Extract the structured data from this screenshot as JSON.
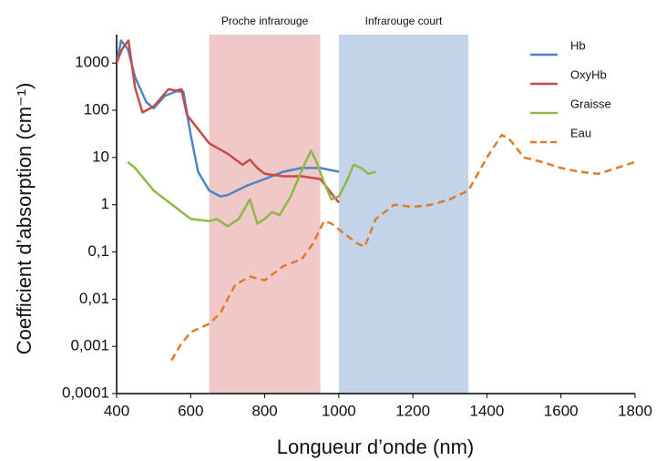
{
  "chart_data": {
    "type": "line",
    "xlabel": "Longueur d’onde (nm)",
    "ylabel": "Coefficient d’absorption (cm⁻¹)",
    "yscale": "log",
    "xlim": [
      400,
      1800
    ],
    "ylim": [
      0.0001,
      4000
    ],
    "xticks": [
      400,
      600,
      800,
      1000,
      1200,
      1400,
      1600,
      1800
    ],
    "yticks": [
      {
        "value": 0.0001,
        "label": "0,0001"
      },
      {
        "value": 0.001,
        "label": "0,001"
      },
      {
        "value": 0.01,
        "label": "0,01"
      },
      {
        "value": 0.1,
        "label": "0,1"
      },
      1,
      10,
      100,
      1000
    ],
    "regions": [
      {
        "label": "Proche infrarouge",
        "start": 650,
        "end": 950,
        "color": "#f0c8c8"
      },
      {
        "label": "Infrarouge court",
        "start": 1000,
        "end": 1350,
        "color": "#c3d3e8"
      }
    ],
    "series": [
      {
        "name": "Hb",
        "color": "#4a86c8",
        "dash": false,
        "x": [
          400,
          412,
          430,
          450,
          480,
          500,
          530,
          560,
          580,
          600,
          620,
          650,
          680,
          700,
          750,
          800,
          850,
          900,
          950,
          1000
        ],
        "values": [
          1000,
          3000,
          2000,
          500,
          150,
          110,
          200,
          250,
          250,
          30,
          5,
          2,
          1.5,
          1.6,
          2.5,
          3.5,
          5,
          6,
          6,
          5
        ]
      },
      {
        "name": "OxyHb",
        "color": "#c84b4b",
        "dash": false,
        "x": [
          400,
          415,
          432,
          450,
          470,
          500,
          540,
          560,
          575,
          590,
          620,
          650,
          700,
          740,
          760,
          780,
          800,
          850,
          900,
          950,
          1000
        ],
        "values": [
          1000,
          2000,
          3000,
          300,
          90,
          120,
          280,
          260,
          280,
          80,
          40,
          20,
          12,
          7,
          9,
          6,
          4.5,
          4,
          4,
          3.5,
          1.1
        ]
      },
      {
        "name": "Graisse",
        "color": "#8fb84a",
        "dash": false,
        "x": [
          430,
          450,
          500,
          550,
          600,
          650,
          670,
          700,
          730,
          760,
          780,
          800,
          820,
          840,
          870,
          910,
          925,
          940,
          960,
          980,
          1000,
          1020,
          1040,
          1060,
          1080,
          1100
        ],
        "values": [
          8,
          6,
          2,
          1,
          0.5,
          0.45,
          0.5,
          0.35,
          0.5,
          1.3,
          0.4,
          0.5,
          0.7,
          0.6,
          1.5,
          8,
          14,
          8,
          3,
          1.3,
          1.5,
          3,
          7,
          6,
          4.5,
          5
        ]
      },
      {
        "name": "Eau",
        "color": "#e07b2a",
        "dash": true,
        "x": [
          548,
          570,
          600,
          650,
          680,
          720,
          760,
          800,
          850,
          900,
          930,
          960,
          980,
          1000,
          1050,
          1070,
          1100,
          1150,
          1200,
          1250,
          1300,
          1350,
          1400,
          1440,
          1460,
          1500,
          1550,
          1600,
          1650,
          1700,
          1750,
          1800
        ],
        "values": [
          0.0005,
          0.001,
          0.002,
          0.003,
          0.005,
          0.02,
          0.03,
          0.025,
          0.05,
          0.07,
          0.15,
          0.45,
          0.4,
          0.3,
          0.15,
          0.13,
          0.5,
          1,
          0.9,
          1,
          1.3,
          2,
          10,
          30,
          25,
          10,
          8,
          6,
          5,
          4.5,
          6,
          8
        ]
      }
    ]
  }
}
